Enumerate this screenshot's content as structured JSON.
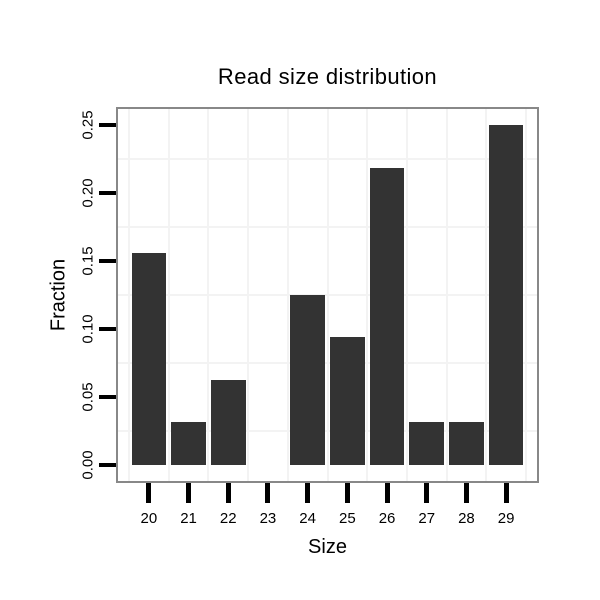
{
  "chart_data": {
    "type": "bar",
    "title": "Read size distribution",
    "xlabel": "Size",
    "ylabel": "Fraction",
    "categories": [
      "20",
      "21",
      "22",
      "23",
      "24",
      "25",
      "26",
      "27",
      "28",
      "29"
    ],
    "values": [
      0.15625,
      0.03125,
      0.0625,
      0,
      0.125,
      0.09375,
      0.21875,
      0.03125,
      0.03125,
      0.25
    ],
    "y_ticks": [
      "0.00",
      "0.05",
      "0.10",
      "0.15",
      "0.20",
      "0.25"
    ],
    "y_tick_values": [
      0,
      0.05,
      0.1,
      0.15,
      0.2,
      0.25
    ],
    "grid_y_values": [
      0.025,
      0.075,
      0.125,
      0.175,
      0.225
    ],
    "ylim": [
      -0.0118,
      0.2618
    ],
    "grid": "on",
    "legend": "none",
    "bar_color": "#333333",
    "grid_color": "#f3f3f3",
    "border_color": "#888888",
    "tick_color": "#000000",
    "text_color": "#000000",
    "background": "#ffffff"
  }
}
